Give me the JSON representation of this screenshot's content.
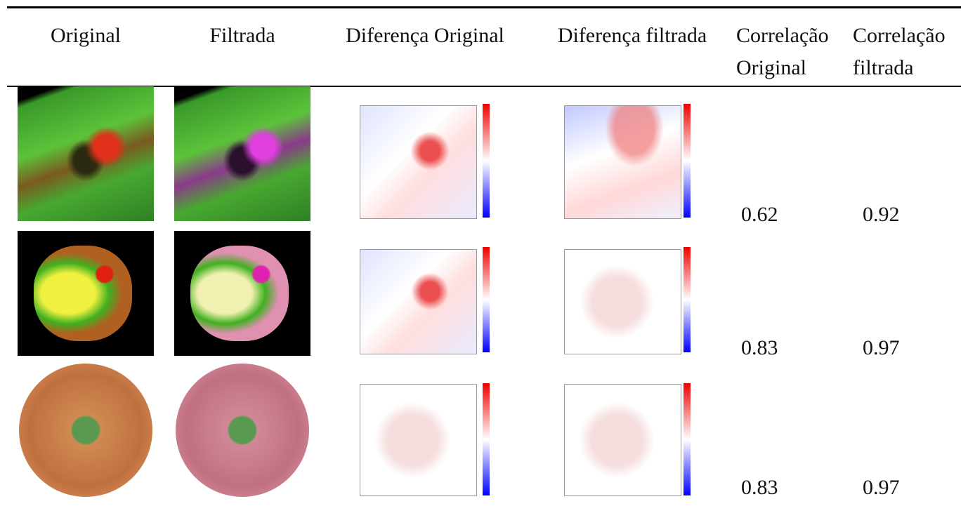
{
  "table": {
    "headers": [
      "Original",
      "Filtrada",
      "Diferença Original",
      "Diferença filtrada",
      "Correlação Original",
      "Correlação filtrada"
    ],
    "rows": [
      [
        0.62,
        0.92
      ],
      [
        0.83,
        0.97
      ],
      [
        0.83,
        0.97
      ]
    ]
  }
}
